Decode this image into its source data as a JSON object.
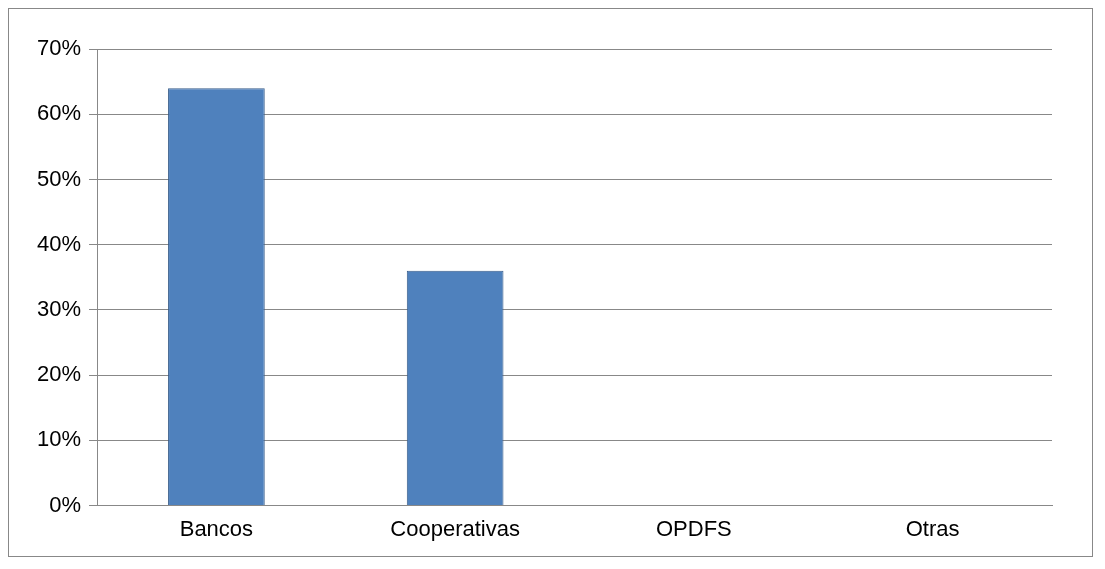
{
  "chart_data": {
    "type": "bar",
    "categories": [
      "Bancos",
      "Cooperativas",
      "OPDFS",
      "Otras"
    ],
    "values": [
      64,
      36,
      0,
      0
    ],
    "color": "#4f81bd",
    "ylim": [
      0,
      70
    ],
    "yticks": [
      {
        "value": 0,
        "label": "0%"
      },
      {
        "value": 10,
        "label": "10%"
      },
      {
        "value": 20,
        "label": "20%"
      },
      {
        "value": 30,
        "label": "30%"
      },
      {
        "value": 40,
        "label": "40%"
      },
      {
        "value": 50,
        "label": "50%"
      },
      {
        "value": 60,
        "label": "60%"
      },
      {
        "value": 70,
        "label": "70%"
      }
    ],
    "grid": "y",
    "legend": false
  }
}
